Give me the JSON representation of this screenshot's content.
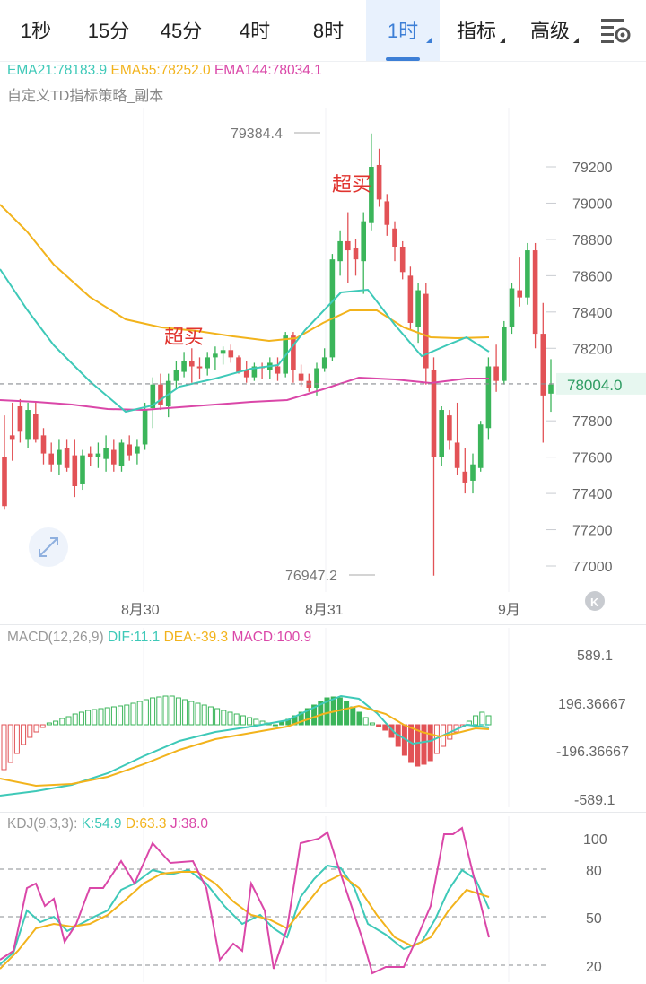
{
  "tabs": [
    {
      "label": "1秒",
      "active": false,
      "dropdown": false
    },
    {
      "label": "15分",
      "active": false,
      "dropdown": false
    },
    {
      "label": "45分",
      "active": false,
      "dropdown": false
    },
    {
      "label": "4时",
      "active": false,
      "dropdown": false
    },
    {
      "label": "8时",
      "active": false,
      "dropdown": false
    },
    {
      "label": "1时",
      "active": true,
      "dropdown": true
    },
    {
      "label": "指标",
      "active": false,
      "dropdown": true
    },
    {
      "label": "高级",
      "active": false,
      "dropdown": true
    }
  ],
  "settings_icon": "chart-settings-icon",
  "main_chart": {
    "ema21": "EMA21:78183.9",
    "ema55": "EMA55:78252.0",
    "ema144": "EMA144:78034.1",
    "indicator_name": "自定义TD指标策略_副本",
    "high_label": "79384.4",
    "low_label": "76947.2",
    "current_price": "78004.0",
    "y_ticks": [
      "79200",
      "79000",
      "78800",
      "78600",
      "78400",
      "78200",
      "77800",
      "77600",
      "77400",
      "77200",
      "77000"
    ],
    "x_ticks": [
      "8月30",
      "8月31",
      "9月"
    ],
    "signals": [
      "超买",
      "超买"
    ],
    "k_button": "K"
  },
  "macd": {
    "title": "MACD(12,26,9)",
    "dif": "DIF:11.1",
    "dea": "DEA:-39.3",
    "macd": "MACD:100.9",
    "y_ticks": [
      "589.1",
      "196.36667",
      "-196.36667",
      "-589.1"
    ]
  },
  "kdj": {
    "title": "KDJ(9,3,3):",
    "k": "K:54.9",
    "d": "D:63.3",
    "j": "J:38.0",
    "y_ticks": [
      "100",
      "80",
      "50",
      "20"
    ]
  },
  "colors": {
    "up": "#3bb55a",
    "down": "#e25256",
    "ema21": "#3ec9b8",
    "ema55": "#f2b31c",
    "ema144": "#da47a8",
    "accent": "#3d7fd6"
  }
}
